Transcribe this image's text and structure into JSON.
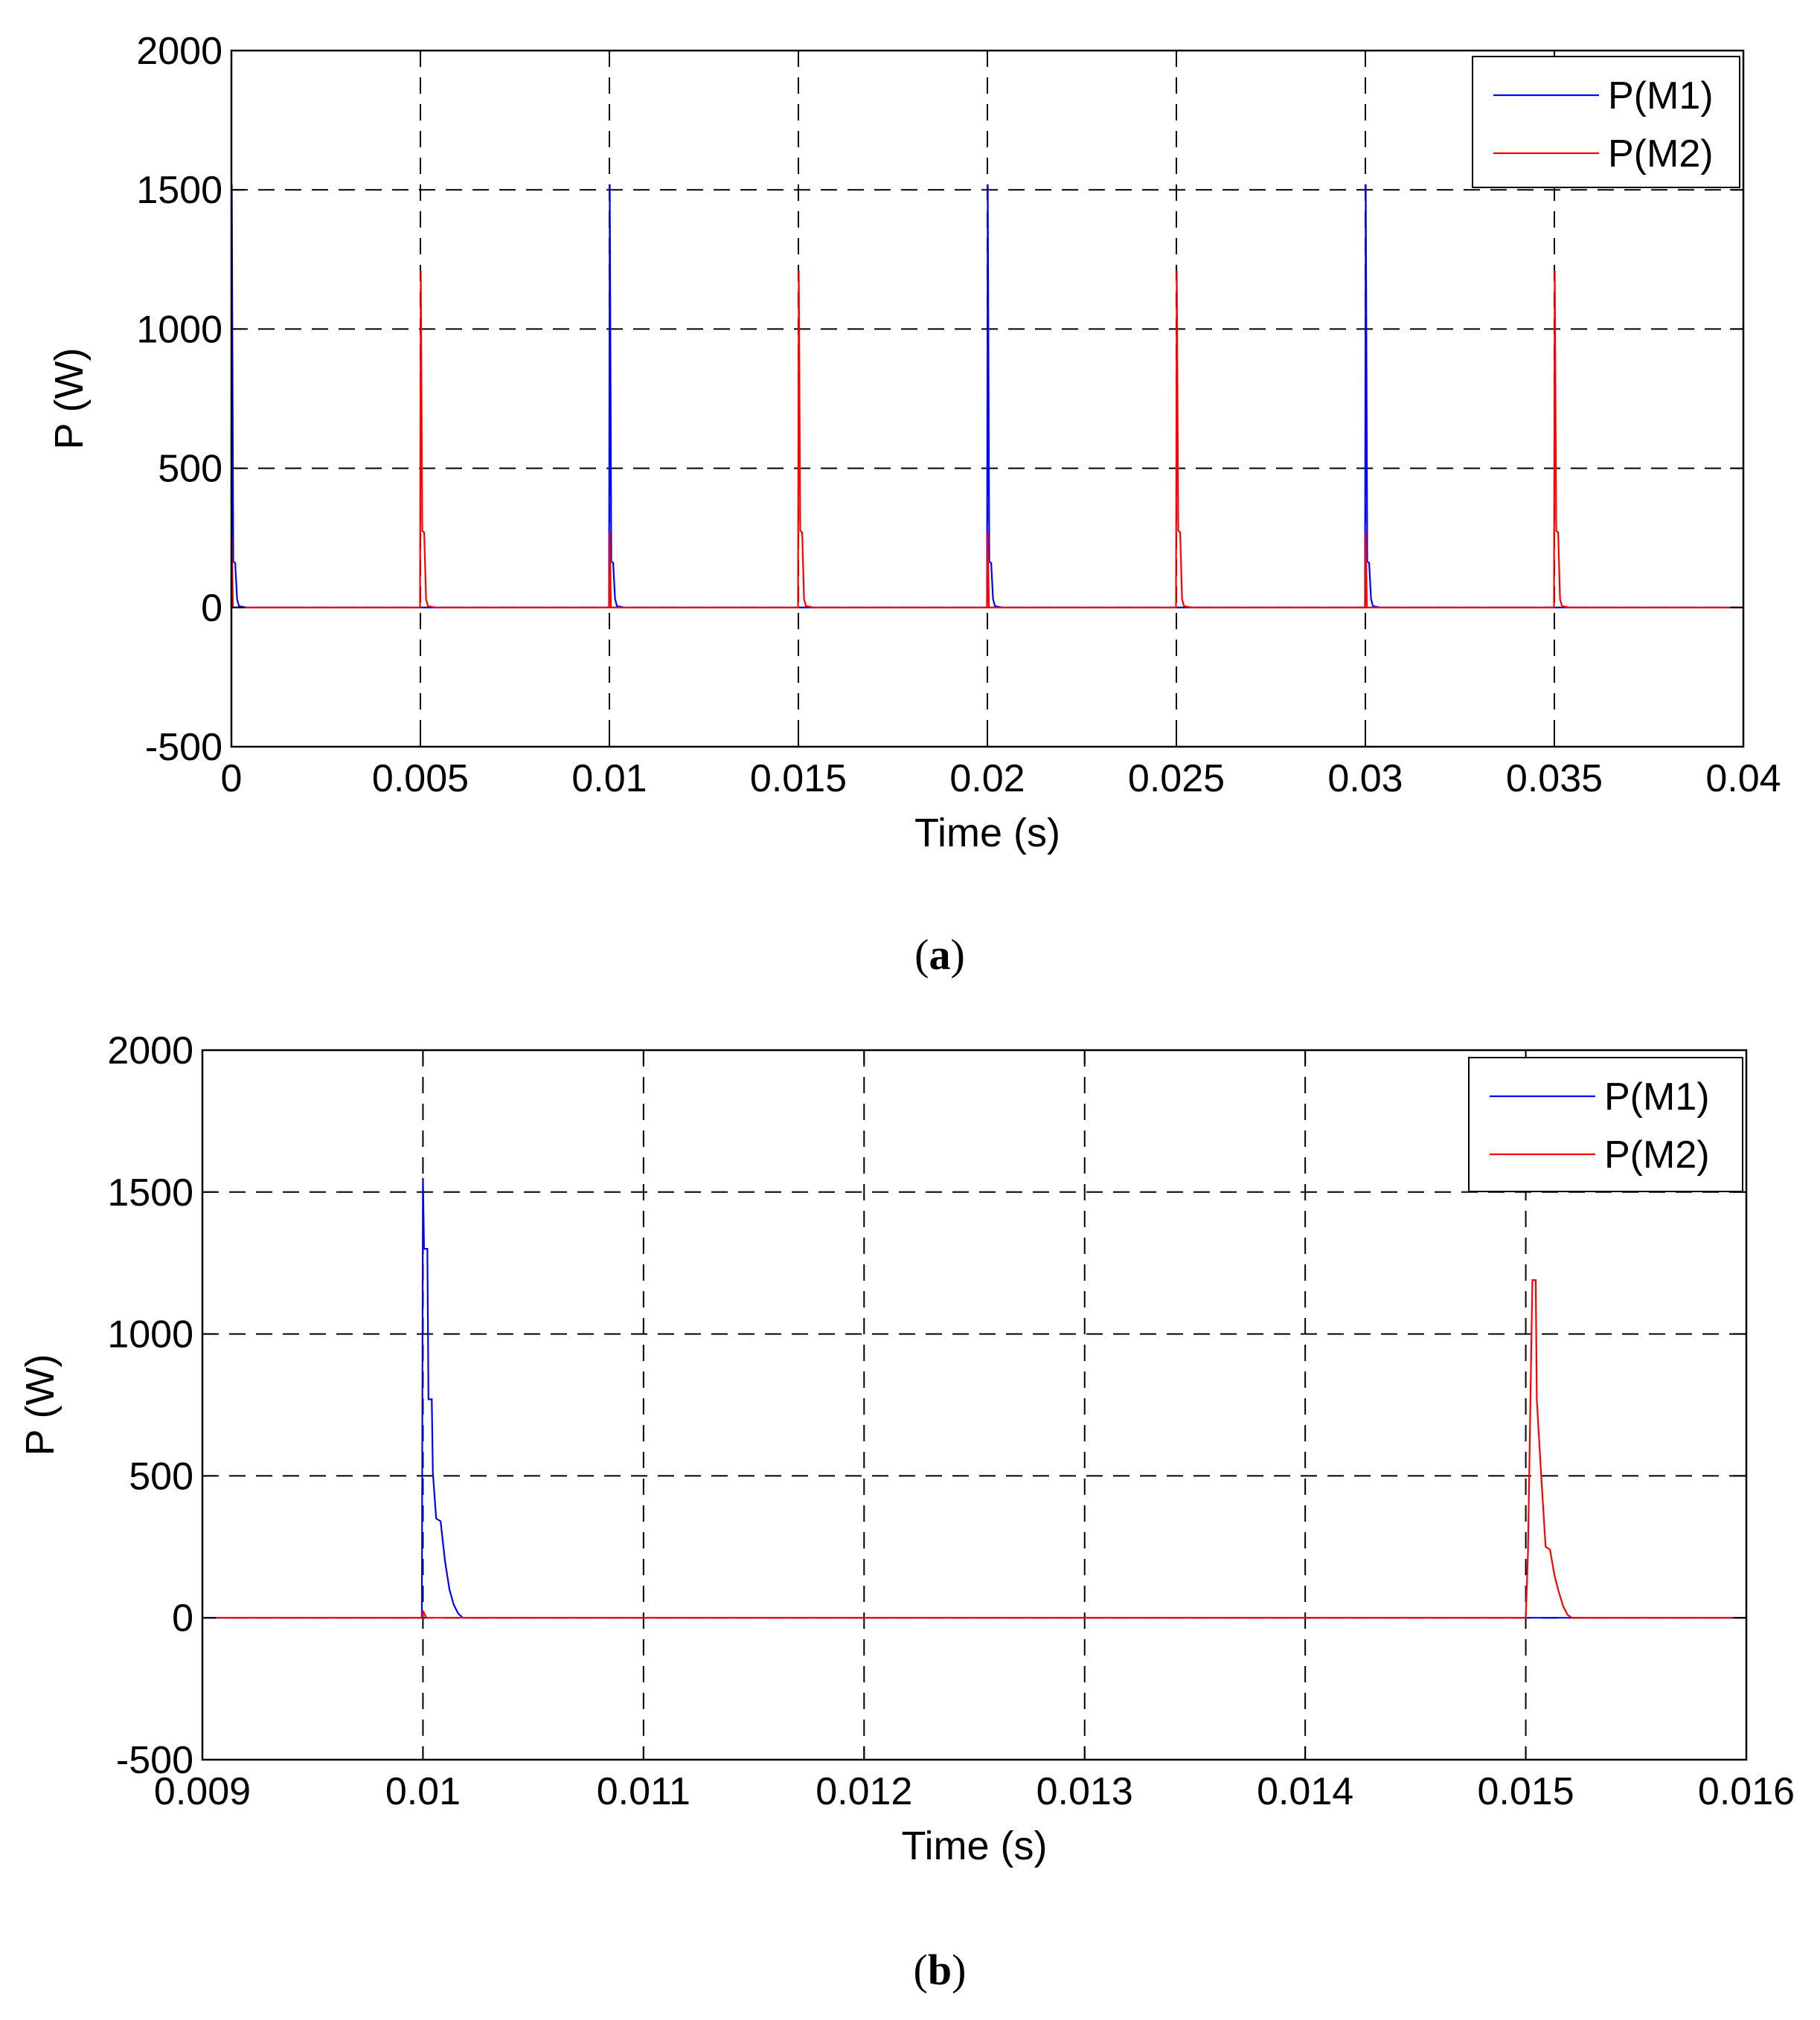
{
  "chart_data": [
    {
      "type": "line",
      "caption": "a",
      "xlabel": "Time (s)",
      "ylabel": "P (W)",
      "xlim": [
        0,
        0.04
      ],
      "ylim": [
        -500,
        2000
      ],
      "xticks": [
        0,
        0.005,
        0.01,
        0.015,
        0.02,
        0.025,
        0.03,
        0.035,
        0.04
      ],
      "xtick_labels": [
        "0",
        "0.005",
        "0.01",
        "0.015",
        "0.02",
        "0.025",
        "0.03",
        "0.035",
        "0.04"
      ],
      "yticks": [
        -500,
        0,
        500,
        1000,
        1500,
        2000
      ],
      "ytick_labels": [
        "-500",
        "0",
        "500",
        "1000",
        "1500",
        "2000"
      ],
      "grid": "dashed",
      "legend_position": "top-right",
      "series": [
        {
          "name": "P(M1)",
          "color": "#0000ff",
          "points": [
            [
              0,
              0
            ],
            [
              1e-05,
              1520
            ],
            [
              5e-05,
              165
            ],
            [
              0.0001,
              160
            ],
            [
              0.00015,
              30
            ],
            [
              0.0002,
              5
            ],
            [
              0.0004,
              0
            ],
            [
              0.00999,
              0
            ],
            [
              0.01001,
              1520
            ],
            [
              0.01005,
              165
            ],
            [
              0.0101,
              160
            ],
            [
              0.01015,
              30
            ],
            [
              0.0102,
              5
            ],
            [
              0.0104,
              0
            ],
            [
              0.01999,
              0
            ],
            [
              0.02001,
              1520
            ],
            [
              0.02005,
              165
            ],
            [
              0.0201,
              160
            ],
            [
              0.02015,
              30
            ],
            [
              0.0202,
              5
            ],
            [
              0.0204,
              0
            ],
            [
              0.02999,
              0
            ],
            [
              0.03001,
              1520
            ],
            [
              0.03005,
              165
            ],
            [
              0.0301,
              160
            ],
            [
              0.03015,
              30
            ],
            [
              0.0302,
              5
            ],
            [
              0.0304,
              0
            ],
            [
              0.04,
              0
            ]
          ]
        },
        {
          "name": "P(M2)",
          "color": "#ff0000",
          "points": [
            [
              0,
              0
            ],
            [
              2e-05,
              270
            ],
            [
              6e-05,
              0
            ],
            [
              0.00999,
              0
            ],
            [
              0.01001,
              270
            ],
            [
              0.01004,
              0
            ],
            [
              0.01999,
              0
            ],
            [
              0.02001,
              270
            ],
            [
              0.02004,
              0
            ],
            [
              0.02999,
              0
            ],
            [
              0.03001,
              270
            ],
            [
              0.03004,
              0
            ],
            [
              0.00499,
              0
            ],
            [
              0.00501,
              1210
            ],
            [
              0.00505,
              275
            ],
            [
              0.0001,
              0
            ],
            [
              0.04,
              0
            ]
          ],
          "spikes_at": [
            0.005,
            0.015,
            0.025,
            0.035
          ],
          "spike_profile": [
            [
              -1e-05,
              0
            ],
            [
              1e-05,
              1210
            ],
            [
              5e-05,
              275
            ],
            [
              0.0001,
              270
            ],
            [
              0.00015,
              30
            ],
            [
              0.0002,
              5
            ],
            [
              0.0004,
              0
            ]
          ],
          "base_spikes_at": [
            0,
            0.01,
            0.02,
            0.03
          ],
          "base_spike_profile": [
            [
              -1e-05,
              0
            ],
            [
              1e-05,
              270
            ],
            [
              4e-05,
              0
            ]
          ]
        }
      ]
    },
    {
      "type": "line",
      "caption": "b",
      "xlabel": "Time (s)",
      "ylabel": "P (W)",
      "xlim": [
        0.009,
        0.016
      ],
      "ylim": [
        -500,
        2000
      ],
      "xticks": [
        0.009,
        0.01,
        0.011,
        0.012,
        0.013,
        0.014,
        0.015,
        0.016
      ],
      "xtick_labels": [
        "0.009",
        "0.01",
        "0.011",
        "0.012",
        "0.013",
        "0.014",
        "0.015",
        "0.016"
      ],
      "yticks": [
        -500,
        0,
        500,
        1000,
        1500,
        2000
      ],
      "ytick_labels": [
        "-500",
        "0",
        "500",
        "1000",
        "1500",
        "2000"
      ],
      "grid": "dashed",
      "legend_position": "top-right",
      "series": [
        {
          "name": "P(M1)",
          "color": "#0000ff",
          "points": [
            [
              0.009,
              0
            ],
            [
              0.009995,
              0
            ],
            [
              0.01,
              1550
            ],
            [
              0.010005,
              1300
            ],
            [
              0.01002,
              1300
            ],
            [
              0.010025,
              770
            ],
            [
              0.01004,
              770
            ],
            [
              0.010045,
              510
            ],
            [
              0.01006,
              350
            ],
            [
              0.01008,
              340
            ],
            [
              0.0101,
              200
            ],
            [
              0.01012,
              100
            ],
            [
              0.01014,
              45
            ],
            [
              0.01016,
              15
            ],
            [
              0.01018,
              0
            ],
            [
              0.016,
              0
            ]
          ]
        },
        {
          "name": "P(M2)",
          "color": "#ff0000",
          "points": [
            [
              0.009,
              0
            ],
            [
              0.009998,
              0
            ],
            [
              0.01,
              25
            ],
            [
              0.010015,
              0
            ],
            [
              0.015,
              0
            ],
            [
              0.01501,
              230
            ],
            [
              0.01503,
              1190
            ],
            [
              0.015045,
              1190
            ],
            [
              0.01505,
              770
            ],
            [
              0.01507,
              500
            ],
            [
              0.01509,
              250
            ],
            [
              0.01511,
              240
            ],
            [
              0.01513,
              150
            ],
            [
              0.01515,
              90
            ],
            [
              0.01517,
              40
            ],
            [
              0.01519,
              10
            ],
            [
              0.01521,
              0
            ],
            [
              0.016,
              0
            ]
          ]
        }
      ]
    }
  ]
}
